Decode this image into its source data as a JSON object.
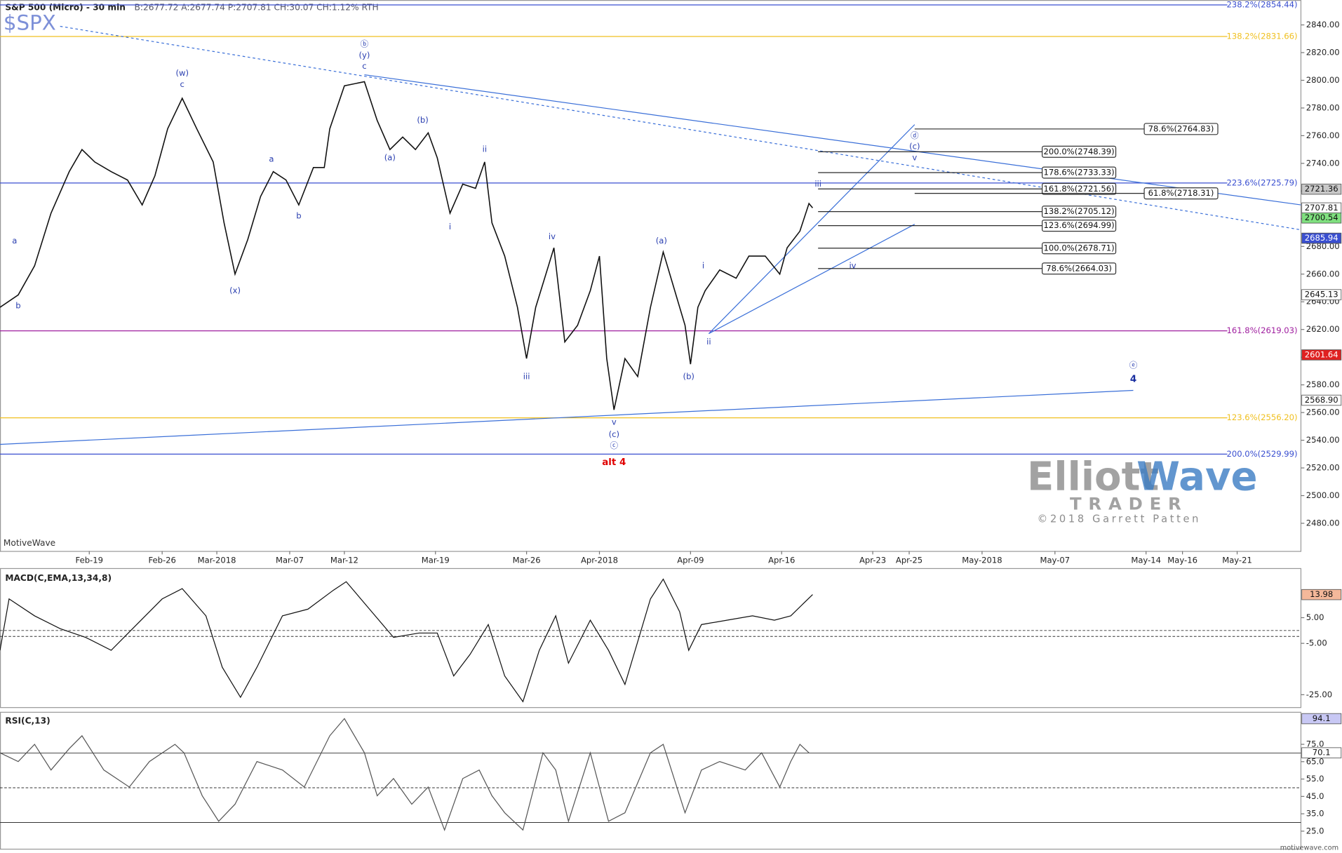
{
  "chart_data": [
    {
      "type": "line",
      "title": "S&P 500 (Micro) - 30 min",
      "quote": "B:2677.72 A:2677.74 P:2707.81 CH:30.07 CH:1.12% RTH",
      "symbol": "$SPX",
      "source": "MotiveWave",
      "footer": "motivewave.com",
      "watermark": {
        "brand1": "Elliott",
        "brand2": "Wave",
        "sub": "TRADER",
        "credit": "©2018 Garrett Patten"
      },
      "color": "#111111",
      "x": [
        -4.9,
        -3.9,
        -3.0,
        -2.1,
        -1.1,
        -0.4,
        0.3,
        1.2,
        2.1,
        2.9,
        3.6,
        4.3,
        5.1,
        5.9,
        6.8,
        7.4,
        8.0,
        8.7,
        9.4,
        10.1,
        10.8,
        11.5,
        12.3,
        12.9,
        13.2,
        14.0,
        15.1,
        15.8,
        16.5,
        17.2,
        17.9,
        18.6,
        19.1,
        19.8,
        20.5,
        21.2,
        21.7,
        22.1,
        22.8,
        23.5,
        24.0,
        24.5,
        25.2,
        25.5,
        26.1,
        26.8,
        27.5,
        28.0,
        28.4,
        28.8,
        29.4,
        30.1,
        30.8,
        31.5,
        32.0,
        32.7,
        33.0,
        33.4,
        33.8,
        34.6,
        35.5,
        36.2,
        37.1,
        37.9,
        38.3,
        39.0,
        39.5,
        39.7
      ],
      "values": [
        2636,
        2645,
        2666,
        2704,
        2734,
        2750,
        2741,
        2734,
        2728,
        2710,
        2731,
        2765,
        2787,
        2765,
        2741,
        2697,
        2660,
        2685,
        2716,
        2734,
        2728,
        2710,
        2737,
        2737,
        2765,
        2796,
        2799,
        2771,
        2750,
        2759,
        2750,
        2762,
        2744,
        2704,
        2725,
        2722,
        2741,
        2697,
        2673,
        2636,
        2599,
        2636,
        2666,
        2679,
        2611,
        2623,
        2648,
        2673,
        2599,
        2562,
        2599,
        2586,
        2636,
        2676,
        2654,
        2623,
        2595,
        2636,
        2648,
        2663,
        2657,
        2673,
        2673,
        2660,
        2679,
        2691,
        2711,
        2707.81
      ],
      "xlim": [
        -4.9,
        66.5
      ],
      "xticks": [
        {
          "value": 0,
          "label": "Feb-19"
        },
        {
          "value": 4,
          "label": "Feb-26"
        },
        {
          "value": 7,
          "label": "Mar-2018"
        },
        {
          "value": 11,
          "label": "Mar-07"
        },
        {
          "value": 14,
          "label": "Mar-12"
        },
        {
          "value": 19,
          "label": "Mar-19"
        },
        {
          "value": 24,
          "label": "Mar-26"
        },
        {
          "value": 28,
          "label": "Apr-2018"
        },
        {
          "value": 33,
          "label": "Apr-09"
        },
        {
          "value": 38,
          "label": "Apr-16"
        },
        {
          "value": 43,
          "label": "Apr-23"
        },
        {
          "value": 45,
          "label": "Apr-25"
        },
        {
          "value": 49,
          "label": "May-2018"
        },
        {
          "value": 53,
          "label": "May-07"
        },
        {
          "value": 58,
          "label": "May-14"
        },
        {
          "value": 60,
          "label": "May-16"
        },
        {
          "value": 63,
          "label": "May-21"
        }
      ],
      "ylim": [
        2460,
        2858
      ],
      "yticks": [
        {
          "value": 2480,
          "label": "2480.00"
        },
        {
          "value": 2500,
          "label": "2500.00"
        },
        {
          "value": 2520,
          "label": "2520.00"
        },
        {
          "value": 2540,
          "label": "2540.00"
        },
        {
          "value": 2560,
          "label": "2560.00"
        },
        {
          "value": 2580,
          "label": "2580.00"
        },
        {
          "value": 2600,
          "label": "2600.00"
        },
        {
          "value": 2620,
          "label": "2620.00"
        },
        {
          "value": 2640,
          "label": "2640.00"
        },
        {
          "value": 2660,
          "label": "2660.00"
        },
        {
          "value": 2680,
          "label": "2680.00"
        },
        {
          "value": 2700,
          "label": "2700.00"
        },
        {
          "value": 2720,
          "label": "2720.00"
        },
        {
          "value": 2740,
          "label": "2740.00"
        },
        {
          "value": 2760,
          "label": "2760.00"
        },
        {
          "value": 2780,
          "label": "2780.00"
        },
        {
          "value": 2800,
          "label": "2800.00"
        },
        {
          "value": 2820,
          "label": "2820.00"
        },
        {
          "value": 2840,
          "label": "2840.00"
        }
      ],
      "fib_levels": [
        {
          "label": "238.2%(2854.44)",
          "value": 2854.44,
          "color": "#3a4fd0"
        },
        {
          "label": "138.2%(2831.66)",
          "value": 2831.66,
          "color": "#f0c020"
        },
        {
          "label": "223.6%(2725.79)",
          "value": 2725.79,
          "color": "#3a4fd0"
        },
        {
          "label": "161.8%(2619.03)",
          "value": 2619.03,
          "color": "#a020a0"
        },
        {
          "label": "123.6%(2556.20)",
          "value": 2556.2,
          "color": "#f0c020"
        },
        {
          "label": "200.0%(2529.99)",
          "value": 2529.99,
          "color": "#3a4fd0"
        }
      ],
      "fib_targets": [
        {
          "label": "78.6%(2764.83)",
          "value": 2764.83,
          "x": [
            45.3,
            57.9
          ]
        },
        {
          "label": "200.0%(2748.39)",
          "value": 2748.39,
          "x": [
            40.0,
            52.3
          ]
        },
        {
          "label": "178.6%(2733.33)",
          "value": 2733.33,
          "x": [
            40.0,
            52.3
          ]
        },
        {
          "label": "161.8%(2721.56)",
          "value": 2721.56,
          "x": [
            40.0,
            52.3
          ]
        },
        {
          "label": "61.8%(2718.31)",
          "value": 2718.31,
          "x": [
            45.3,
            57.9
          ]
        },
        {
          "label": "138.2%(2705.12)",
          "value": 2705.12,
          "x": [
            40.0,
            52.3
          ]
        },
        {
          "label": "123.6%(2694.99)",
          "value": 2694.99,
          "x": [
            40.0,
            52.3
          ]
        },
        {
          "label": "100.0%(2678.71)",
          "value": 2678.71,
          "x": [
            40.0,
            52.3
          ]
        },
        {
          "label": "78.6%(2664.03)",
          "value": 2664.03,
          "x": [
            40.0,
            52.3
          ]
        }
      ],
      "trend_lines": [
        {
          "x": [
            -1.6,
            66.5
          ],
          "y": [
            2839,
            2692
          ],
          "color": "#3a6fd8",
          "dashed": true
        },
        {
          "x": [
            15.1,
            66.5
          ],
          "y": [
            2804,
            2710
          ],
          "color": "#3a6fd8",
          "dashed": false
        },
        {
          "x": [
            -4.9,
            57.3
          ],
          "y": [
            2537,
            2576
          ],
          "color": "#3a6fd8",
          "dashed": false
        },
        {
          "x": [
            34.0,
            45.3
          ],
          "y": [
            2617,
            2768
          ],
          "color": "#3a6fd8",
          "dashed": false
        },
        {
          "x": [
            34.0,
            45.3
          ],
          "y": [
            2617,
            2696
          ],
          "color": "#3a6fd8",
          "dashed": false
        }
      ],
      "wave_labels": [
        {
          "text": "a",
          "x": -4.1,
          "y": 2684,
          "color": "#2a3fb0"
        },
        {
          "text": "b",
          "x": -3.9,
          "y": 2637,
          "color": "#2a3fb0"
        },
        {
          "text": "(w)",
          "x": 5.1,
          "y": 2805,
          "color": "#2a3fb0"
        },
        {
          "text": "c",
          "x": 5.1,
          "y": 2797,
          "color": "#2a3fb0"
        },
        {
          "text": "(x)",
          "x": 8.0,
          "y": 2648,
          "color": "#2a3fb0"
        },
        {
          "text": "a",
          "x": 10.0,
          "y": 2743,
          "color": "#2a3fb0"
        },
        {
          "text": "b",
          "x": 11.5,
          "y": 2702,
          "color": "#2a3fb0"
        },
        {
          "text": "ⓑ",
          "x": 15.1,
          "y": 2826,
          "color": "#2a3fb0"
        },
        {
          "text": "(y)",
          "x": 15.1,
          "y": 2818,
          "color": "#2a3fb0"
        },
        {
          "text": "c",
          "x": 15.1,
          "y": 2810,
          "color": "#2a3fb0"
        },
        {
          "text": "(b)",
          "x": 18.3,
          "y": 2771,
          "color": "#2a3fb0"
        },
        {
          "text": "(a)",
          "x": 16.5,
          "y": 2744,
          "color": "#2a3fb0"
        },
        {
          "text": "ii",
          "x": 21.7,
          "y": 2750,
          "color": "#2a3fb0"
        },
        {
          "text": "i",
          "x": 19.8,
          "y": 2694,
          "color": "#2a3fb0"
        },
        {
          "text": "iv",
          "x": 25.4,
          "y": 2687,
          "color": "#2a3fb0"
        },
        {
          "text": "iii",
          "x": 24.0,
          "y": 2586,
          "color": "#2a3fb0"
        },
        {
          "text": "v",
          "x": 28.8,
          "y": 2553,
          "color": "#2a3fb0"
        },
        {
          "text": "(c)",
          "x": 28.8,
          "y": 2544,
          "color": "#2a3fb0"
        },
        {
          "text": "ⓒ",
          "x": 28.8,
          "y": 2536,
          "color": "#2a3fb0"
        },
        {
          "text": "alt 4",
          "x": 28.8,
          "y": 2524,
          "color": "#e00000",
          "bold": true
        },
        {
          "text": "(a)",
          "x": 31.4,
          "y": 2684,
          "color": "#2a3fb0"
        },
        {
          "text": "(b)",
          "x": 32.9,
          "y": 2586,
          "color": "#2a3fb0"
        },
        {
          "text": "i",
          "x": 33.7,
          "y": 2666,
          "color": "#2a3fb0"
        },
        {
          "text": "ii",
          "x": 34.0,
          "y": 2611,
          "color": "#2a3fb0"
        },
        {
          "text": "iii",
          "x": 40.0,
          "y": 2725,
          "color": "#2a3fb0"
        },
        {
          "text": "iv",
          "x": 41.9,
          "y": 2666,
          "color": "#2a3fb0"
        },
        {
          "text": "ⓓ",
          "x": 45.3,
          "y": 2760,
          "color": "#2a3fb0"
        },
        {
          "text": "(c)",
          "x": 45.3,
          "y": 2752,
          "color": "#2a3fb0"
        },
        {
          "text": "v",
          "x": 45.3,
          "y": 2744,
          "color": "#2a3fb0"
        },
        {
          "text": "ⓔ",
          "x": 57.3,
          "y": 2594,
          "color": "#2a3fb0"
        },
        {
          "text": "4",
          "x": 57.3,
          "y": 2584,
          "color": "#1a2fa0",
          "bold": true
        }
      ],
      "price_labels": [
        {
          "value": 2721.36,
          "color": "#c8c8c8"
        },
        {
          "value": 2707.81,
          "color": "#ffffff"
        },
        {
          "value": 2700.54,
          "color": "#7fe07f"
        },
        {
          "value": 2685.94,
          "color": "#3a4fd0",
          "text_color": "#ffffff"
        },
        {
          "value": 2645.13,
          "color": "#ffffff"
        },
        {
          "value": 2601.64,
          "color": "#e02020",
          "text_color": "#ffffff"
        },
        {
          "value": 2568.9,
          "label": "2568.90",
          "color": "#ffffff"
        }
      ]
    },
    {
      "type": "line",
      "title": "MACD(C,EMA,13,34,8)",
      "color": "#111111",
      "x": [
        -4.9,
        -4.4,
        -3.0,
        -1.6,
        -0.2,
        1.2,
        2.6,
        4.0,
        5.1,
        6.4,
        7.3,
        8.3,
        9.2,
        10.6,
        12.0,
        13.4,
        14.1,
        15.3,
        16.7,
        18.1,
        19.1,
        20.0,
        20.9,
        21.9,
        22.8,
        23.8,
        24.7,
        25.6,
        26.3,
        27.5,
        28.5,
        29.4,
        30.8,
        31.5,
        32.4,
        32.9,
        33.6,
        35.0,
        36.4,
        37.6,
        38.5,
        39.7
      ],
      "values": [
        -7.7,
        12.3,
        5.7,
        0.7,
        -2.7,
        -7.7,
        2.3,
        12.3,
        16.3,
        5.7,
        -14.3,
        -26,
        -14.3,
        5.7,
        8.3,
        15.7,
        19,
        9,
        -2.7,
        -1,
        -1,
        -17.7,
        -9.3,
        2.3,
        -17.7,
        -27.7,
        -7.7,
        5.7,
        -12.7,
        4,
        -7.7,
        -21,
        12.3,
        20,
        7.3,
        -7.7,
        2.3,
        4,
        5.7,
        4,
        5.7,
        14
      ],
      "ylim": [
        -30,
        24.3
      ],
      "yticks": [
        {
          "value": 5,
          "label": "5.00"
        },
        {
          "value": -5,
          "label": "-5.00"
        },
        {
          "value": -25,
          "label": "-25.00"
        }
      ],
      "ref_lines": [
        0,
        -2.3
      ],
      "price_labels": [
        {
          "value": 13.98,
          "color": "#f4b89a"
        }
      ]
    },
    {
      "type": "line",
      "title": "RSI(C,13)",
      "color": "#555555",
      "x": [
        -4.9,
        -3.9,
        -3.0,
        -2.1,
        -1.1,
        -0.4,
        0.8,
        2.2,
        3.3,
        4.7,
        5.2,
        6.2,
        7.1,
        8.0,
        9.2,
        10.6,
        11.8,
        13.2,
        14.0,
        15.1,
        15.8,
        16.7,
        17.7,
        18.6,
        19.5,
        20.5,
        21.4,
        22.1,
        22.8,
        23.8,
        24.9,
        25.6,
        26.3,
        27.5,
        28.5,
        29.4,
        30.8,
        31.5,
        32.7,
        33.6,
        34.6,
        36.0,
        36.9,
        37.9,
        38.5,
        39.0,
        39.5
      ],
      "values": [
        70.1,
        65.1,
        75,
        60.2,
        72.5,
        79.9,
        60.2,
        50.4,
        65.1,
        75,
        70.1,
        45.4,
        30.7,
        40.5,
        65.1,
        60.2,
        50.4,
        79.9,
        89.8,
        70.1,
        45.4,
        55.3,
        40.5,
        50.4,
        25.7,
        55.3,
        60.2,
        45.4,
        35.6,
        25.7,
        70.1,
        60.2,
        30.7,
        70.1,
        30.7,
        35.6,
        70.1,
        75,
        35.6,
        60.2,
        65.1,
        60.2,
        70.1,
        50.4,
        65.1,
        75,
        70.1
      ],
      "ylim": [
        14.4,
        93.2
      ],
      "yticks": [
        {
          "value": 75,
          "label": "75.0"
        },
        {
          "value": 65,
          "label": "65.0"
        },
        {
          "value": 55,
          "label": "55.0"
        },
        {
          "value": 45,
          "label": "45.0"
        },
        {
          "value": 35,
          "label": "35.0"
        },
        {
          "value": 25,
          "label": "25.0"
        }
      ],
      "ref_lines": [
        70,
        50,
        30
      ],
      "price_labels": [
        {
          "value": 94.1,
          "color": "#c8c8f4"
        },
        {
          "value": 70.1,
          "color": "#ffffff"
        }
      ]
    }
  ]
}
